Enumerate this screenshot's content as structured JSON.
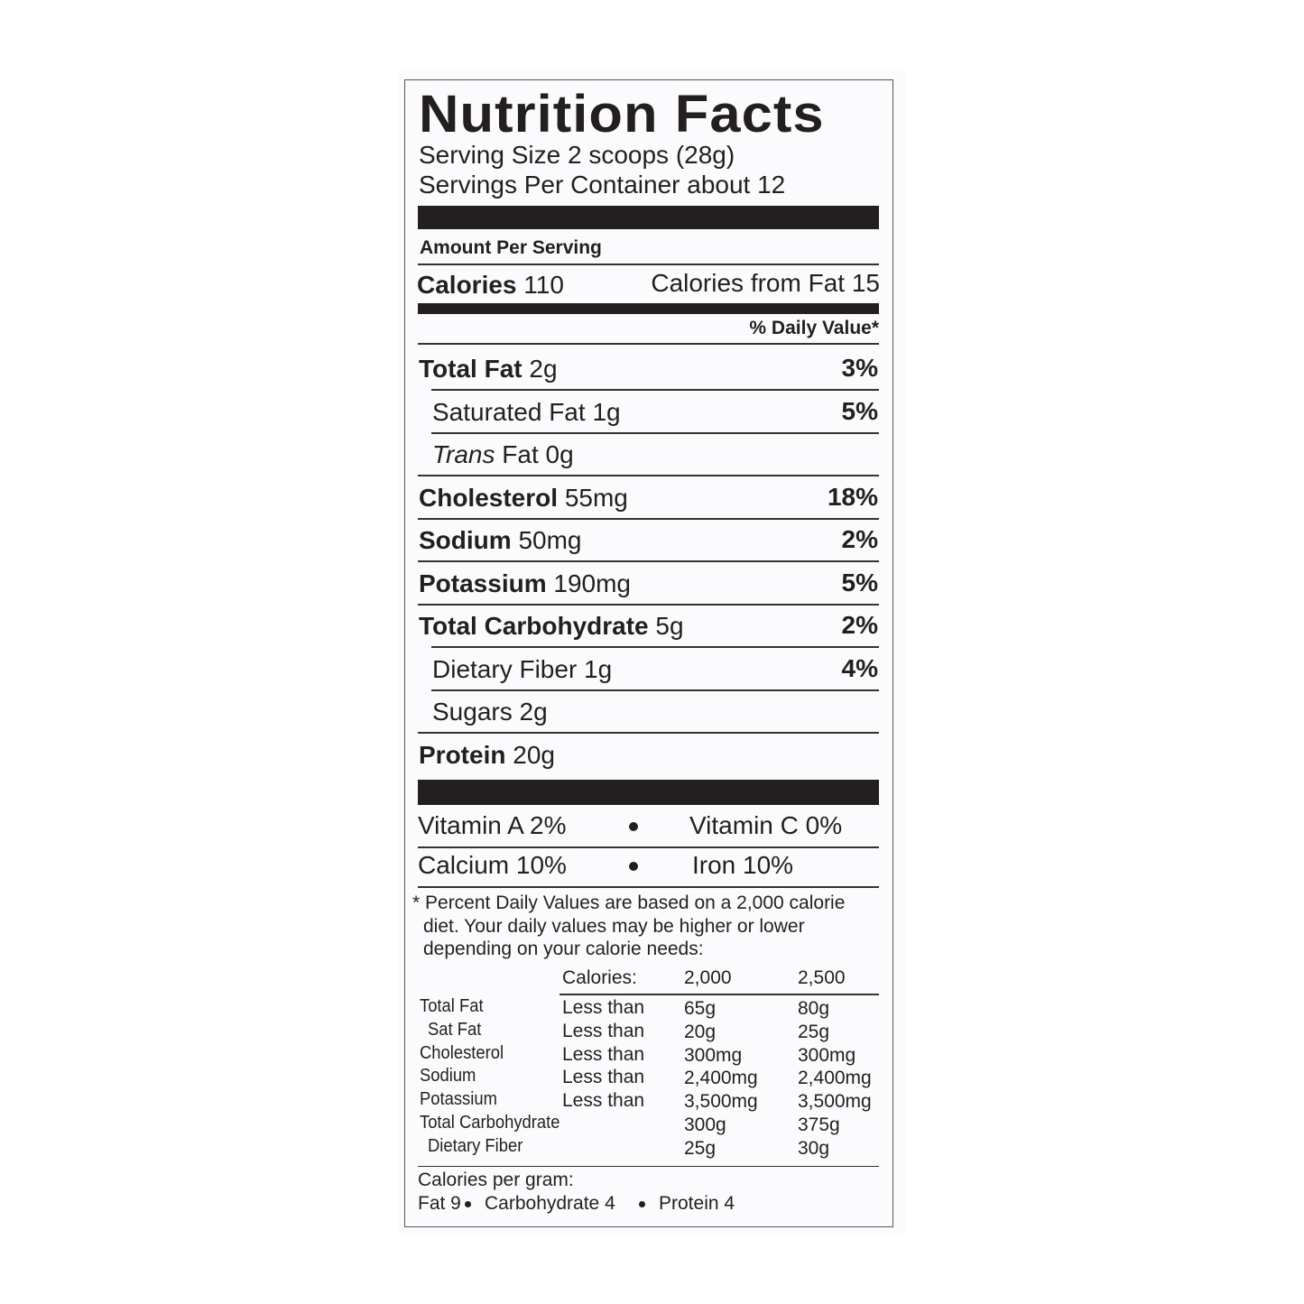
{
  "title": "Nutrition Facts",
  "serving_size": {
    "label": "Serving Size",
    "value": "2 scoops (28g)"
  },
  "servings_per_container": {
    "label": "Servings Per Container",
    "value": "about 12"
  },
  "amount_per_serving": "Amount Per Serving",
  "calories": {
    "label": "Calories",
    "value": "110"
  },
  "calories_from_fat": {
    "label": "Calories from Fat",
    "value": "15"
  },
  "daily_value_header": "% Daily Value*",
  "nutrients": [
    {
      "name": "Total Fat",
      "amount": "2g",
      "dv": "3%",
      "bold": true
    },
    {
      "name": "Saturated Fat",
      "amount": "1g",
      "dv": "5%",
      "indent": true
    },
    {
      "name_italic": "Trans",
      "name": "Fat",
      "amount": "0g",
      "indent": true
    },
    {
      "name": "Cholesterol",
      "amount": "55mg",
      "dv": "18%",
      "bold": true
    },
    {
      "name": "Sodium",
      "amount": "50mg",
      "dv": "2%",
      "bold": true
    },
    {
      "name": "Potassium",
      "amount": "190mg",
      "dv": "5%",
      "bold": true
    },
    {
      "name": "Total Carbohydrate",
      "amount": "5g",
      "dv": "2%",
      "bold": true
    },
    {
      "name": "Dietary Fiber",
      "amount": "1g",
      "dv": "4%",
      "indent": true
    },
    {
      "name": "Sugars",
      "amount": "2g",
      "indent": true
    },
    {
      "name": "Protein",
      "amount": "20g",
      "bold": true
    }
  ],
  "vitamins": [
    [
      "Vitamin A 2%",
      "Vitamin C 0%"
    ],
    [
      "Calcium 10%",
      "Iron 10%"
    ]
  ],
  "footnote": [
    "* Percent Daily Values are based on a 2,000 calorie",
    "diet. Your daily values may be higher or lower",
    "depending on your calorie needs:"
  ],
  "reference_table": {
    "header": [
      "Calories:",
      "2,000",
      "2,500"
    ],
    "rows": [
      {
        "nutrient": "Total Fat",
        "qualifier": "Less than",
        "v2000": "65g",
        "v2500": "80g"
      },
      {
        "nutrient": "Sat Fat",
        "qualifier": "Less than",
        "v2000": "20g",
        "v2500": "25g",
        "indent": true
      },
      {
        "nutrient": "Cholesterol",
        "qualifier": "Less than",
        "v2000": "300mg",
        "v2500": "300mg"
      },
      {
        "nutrient": "Sodium",
        "qualifier": "Less than",
        "v2000": "2,400mg",
        "v2500": "2,400mg"
      },
      {
        "nutrient": "Potassium",
        "qualifier": "Less than",
        "v2000": "3,500mg",
        "v2500": "3,500mg"
      },
      {
        "nutrient": "Total Carbohydrate",
        "v2000": "300g",
        "v2500": "375g"
      },
      {
        "nutrient": "Dietary Fiber",
        "v2000": "25g",
        "v2500": "30g",
        "indent": true
      }
    ]
  },
  "calories_per_gram": {
    "label": "Calories per gram:",
    "items": [
      "Fat 9",
      "Carbohydrate 4",
      "Protein 4"
    ]
  }
}
